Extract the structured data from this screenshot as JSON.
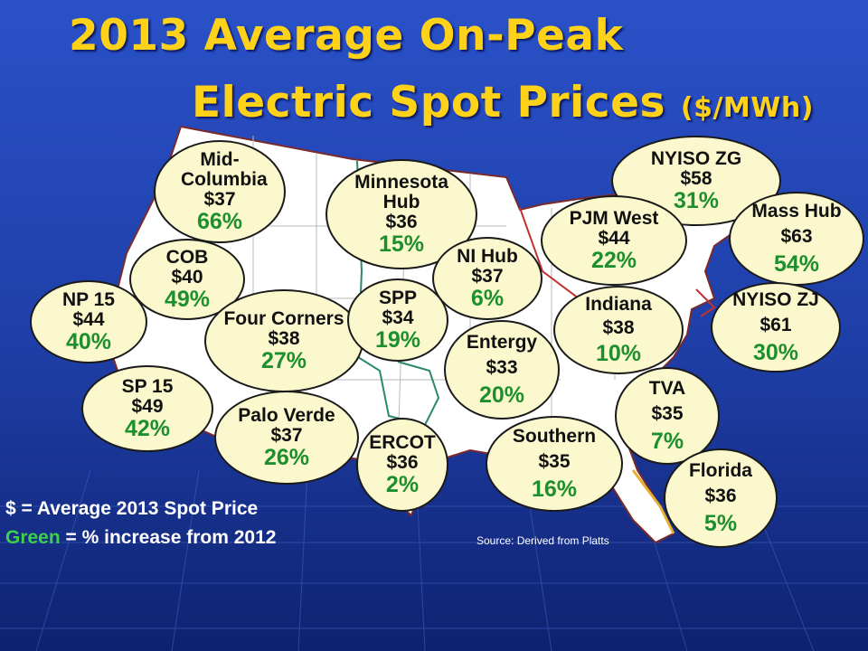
{
  "title": {
    "line1": "2013 Average On-Peak",
    "line2": "Electric Spot Prices",
    "units": "($/MWh)"
  },
  "hubs": [
    {
      "name": "Mid-Columbia",
      "price": "$37",
      "pct": "66%"
    },
    {
      "name": "COB",
      "price": "$40",
      "pct": "49%"
    },
    {
      "name": "NP 15",
      "price": "$44",
      "pct": "40%"
    },
    {
      "name": "SP 15",
      "price": "$49",
      "pct": "42%"
    },
    {
      "name": "Four Corners",
      "price": "$38",
      "pct": "27%"
    },
    {
      "name": "Palo Verde",
      "price": "$37",
      "pct": "26%"
    },
    {
      "name": "Minnesota Hub",
      "price": "$36",
      "pct": "15%"
    },
    {
      "name": "SPP",
      "price": "$34",
      "pct": "19%"
    },
    {
      "name": "NI Hub",
      "price": "$37",
      "pct": "6%"
    },
    {
      "name": "Entergy",
      "price": "$33",
      "pct": "20%"
    },
    {
      "name": "ERCOT",
      "price": "$36",
      "pct": "2%"
    },
    {
      "name": "Southern",
      "price": "$35",
      "pct": "16%"
    },
    {
      "name": "NYISO ZG",
      "price": "$58",
      "pct": "31%"
    },
    {
      "name": "PJM West",
      "price": "$44",
      "pct": "22%"
    },
    {
      "name": "Mass Hub",
      "price": "$63",
      "pct": "54%"
    },
    {
      "name": "Indiana",
      "price": "$38",
      "pct": "10%"
    },
    {
      "name": "NYISO ZJ",
      "price": "$61",
      "pct": "30%"
    },
    {
      "name": "TVA",
      "price": "$35",
      "pct": "7%"
    },
    {
      "name": "Florida",
      "price": "$36",
      "pct": "5%"
    }
  ],
  "legend": {
    "line1": "$ = Average 2013 Spot Price",
    "green_word": "Green",
    "line2_rest": " = % increase from 2012"
  },
  "source": "Source:  Derived from Platts",
  "colors": {
    "background": "#1f3fb0",
    "title": "#FFD21A",
    "bubble_fill": "#FAF8CC",
    "pct_green": "#1e8f2e",
    "map_land": "#ffffff"
  }
}
